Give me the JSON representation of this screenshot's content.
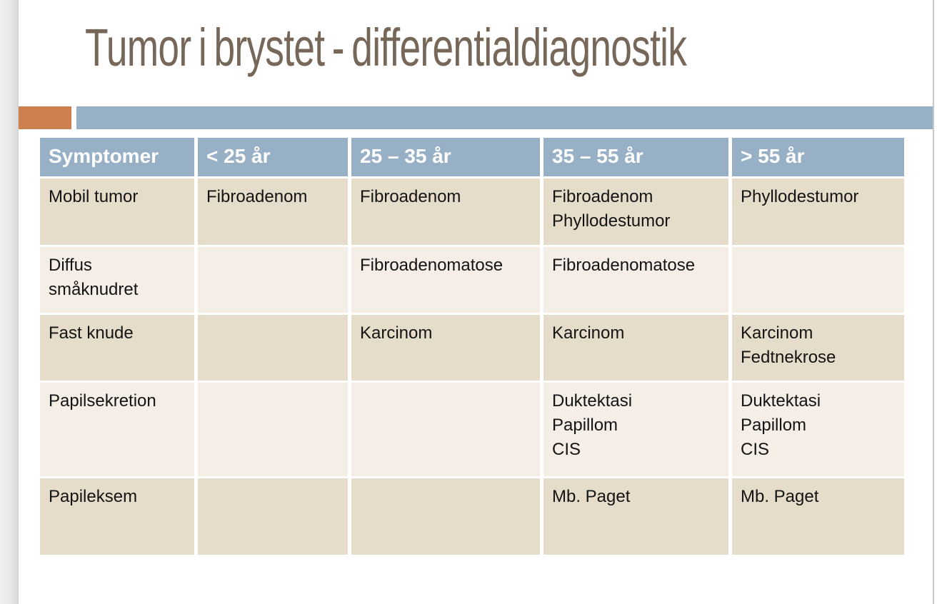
{
  "slide": {
    "title": "Tumor i brystet - differentialdiagnostik"
  },
  "colors": {
    "accent_orange": "#cd814e",
    "accent_blue": "#98b0c6",
    "header_text": "#ffffff",
    "row_tan": "#e5dcc9",
    "row_cream": "#f4eee7",
    "title_brown": "#766759",
    "cell_text": "#141414"
  },
  "table": {
    "columns": [
      "Symptomer",
      "< 25 år",
      "25 – 35 år",
      "35 – 55 år",
      "> 55 år"
    ],
    "rows": [
      {
        "cells": [
          "Mobil tumor",
          "Fibroadenom",
          "Fibroadenom",
          "Fibroadenom\nPhyllodestumor",
          "Phyllodestumor"
        ]
      },
      {
        "cells": [
          "Diffus\nsmåknudret",
          "",
          "Fibroadenomatose",
          "Fibroadenomatose",
          ""
        ]
      },
      {
        "cells": [
          "Fast knude",
          "",
          "Karcinom",
          "Karcinom",
          "Karcinom\nFedtnekrose"
        ]
      },
      {
        "cells": [
          "Papilsekretion",
          "",
          "",
          "Duktektasi\nPapillom\nCIS",
          "Duktektasi\nPapillom\nCIS"
        ]
      },
      {
        "cells": [
          "Papileksem",
          "",
          "",
          "Mb. Paget",
          "Mb. Paget"
        ]
      }
    ]
  }
}
